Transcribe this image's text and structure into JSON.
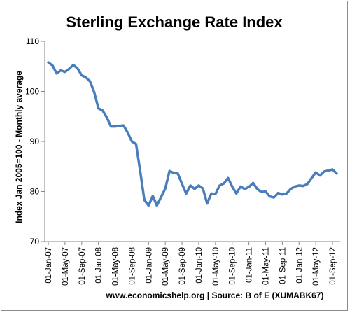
{
  "chart_data": {
    "type": "line",
    "title": "Sterling Exchange Rate Index",
    "ylabel": "Index Jan 2005=100 - Monthly average",
    "xlabel": "",
    "source_note": "www.economicshelp.org | Source: B of E (XUMABK67)",
    "ylim": [
      70,
      110
    ],
    "yticks": [
      "70",
      "80",
      "90",
      "100",
      "110"
    ],
    "grid": false,
    "legend": "none",
    "colors": {
      "line": "#4a7ebb",
      "axis": "#868686"
    },
    "x_tick_labels": [
      "01-Jan-07",
      "01-May-07",
      "01-Sep-07",
      "01-Jan-08",
      "01-May-08",
      "01-Sep-08",
      "01-Jan-09",
      "01-May-09",
      "01-Sep-09",
      "01-Jan-10",
      "01-May-10",
      "01-Sep-10",
      "01-Jan-11",
      "01-May-11",
      "01-Sep-11",
      "01-Jan-12",
      "01-May-12",
      "01-Sep-12"
    ],
    "x": [
      "2007-01",
      "2007-02",
      "2007-03",
      "2007-04",
      "2007-05",
      "2007-06",
      "2007-07",
      "2007-08",
      "2007-09",
      "2007-10",
      "2007-11",
      "2007-12",
      "2008-01",
      "2008-02",
      "2008-03",
      "2008-04",
      "2008-05",
      "2008-06",
      "2008-07",
      "2008-08",
      "2008-09",
      "2008-10",
      "2008-11",
      "2008-12",
      "2009-01",
      "2009-02",
      "2009-03",
      "2009-04",
      "2009-05",
      "2009-06",
      "2009-07",
      "2009-08",
      "2009-09",
      "2009-10",
      "2009-11",
      "2009-12",
      "2010-01",
      "2010-02",
      "2010-03",
      "2010-04",
      "2010-05",
      "2010-06",
      "2010-07",
      "2010-08",
      "2010-09",
      "2010-10",
      "2010-11",
      "2010-12",
      "2011-01",
      "2011-02",
      "2011-03",
      "2011-04",
      "2011-05",
      "2011-06",
      "2011-07",
      "2011-08",
      "2011-09",
      "2011-10",
      "2011-11",
      "2011-12",
      "2012-01",
      "2012-02",
      "2012-03",
      "2012-04",
      "2012-05",
      "2012-06",
      "2012-07",
      "2012-08",
      "2012-09",
      "2012-10"
    ],
    "series": [
      {
        "values": [
          105.8,
          105.2,
          103.6,
          104.2,
          103.9,
          104.5,
          105.3,
          104.6,
          103.2,
          102.8,
          102.0,
          99.8,
          96.6,
          96.2,
          94.8,
          93.0,
          93.0,
          93.1,
          93.2,
          91.8,
          90.0,
          89.5,
          84.0,
          78.3,
          77.2,
          79.1,
          77.2,
          78.9,
          80.6,
          84.1,
          83.7,
          83.6,
          81.5,
          79.6,
          81.2,
          80.5,
          81.2,
          80.6,
          77.6,
          79.6,
          79.5,
          81.2,
          81.6,
          82.7,
          81.0,
          79.6,
          81.0,
          80.5,
          80.9,
          81.7,
          80.5,
          79.9,
          80.0,
          79.0,
          78.8,
          79.7,
          79.4,
          79.6,
          80.5,
          81.0,
          81.2,
          81.1,
          81.5,
          82.7,
          83.8,
          83.2,
          84.0,
          84.2,
          84.4,
          83.6
        ]
      }
    ]
  }
}
